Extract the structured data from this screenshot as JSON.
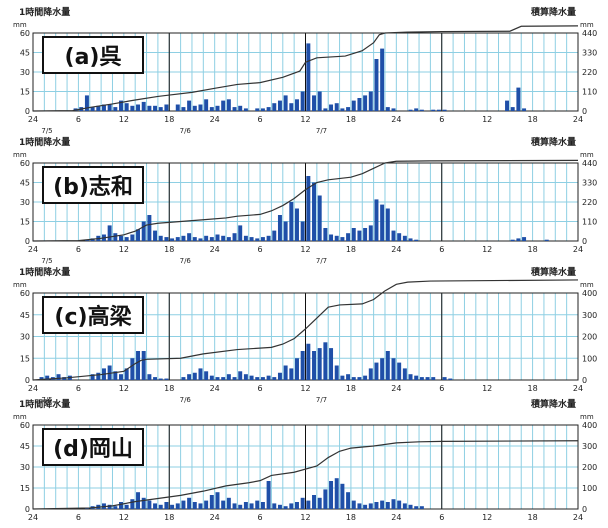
{
  "text": {
    "hourly_label": "1時間降水量",
    "cumulative_label": "積算降水量",
    "unit": "mm"
  },
  "colors": {
    "grid": "#8ecfe3",
    "bar": "#1f4fa8",
    "line": "#333333",
    "frame": "#222222",
    "day_line": "#111111"
  },
  "x_ticks": [
    "24",
    "6",
    "12",
    "18",
    "24",
    "6",
    "12",
    "18",
    "24",
    "6",
    "12",
    "18",
    "24"
  ],
  "date_labels": [
    "7/5",
    "7/6",
    "7/7"
  ],
  "chart_data": [
    {
      "type": "bar",
      "title": "(a)呉",
      "hourly_ylim": [
        0,
        60
      ],
      "hourly_ticks": [
        0,
        15,
        30,
        45,
        60
      ],
      "cum_ylim": [
        0,
        440
      ],
      "cum_ticks": [
        0,
        110,
        220,
        330,
        440
      ],
      "bars": [
        [
          7,
          2
        ],
        [
          8,
          3
        ],
        [
          9,
          12
        ],
        [
          10,
          3
        ],
        [
          11,
          4
        ],
        [
          12,
          5
        ],
        [
          13,
          5
        ],
        [
          14,
          3
        ],
        [
          15,
          8
        ],
        [
          16,
          6
        ],
        [
          17,
          4
        ],
        [
          18,
          5
        ],
        [
          19,
          7
        ],
        [
          20,
          4
        ],
        [
          21,
          4
        ],
        [
          22,
          3
        ],
        [
          23,
          5
        ],
        [
          25,
          5
        ],
        [
          26,
          3
        ],
        [
          27,
          8
        ],
        [
          28,
          4
        ],
        [
          29,
          5
        ],
        [
          30,
          9
        ],
        [
          31,
          3
        ],
        [
          32,
          4
        ],
        [
          33,
          8
        ],
        [
          34,
          9
        ],
        [
          35,
          3
        ],
        [
          36,
          4
        ],
        [
          37,
          2
        ],
        [
          39,
          2
        ],
        [
          40,
          2
        ],
        [
          41,
          3
        ],
        [
          42,
          6
        ],
        [
          43,
          8
        ],
        [
          44,
          12
        ],
        [
          45,
          6
        ],
        [
          46,
          9
        ],
        [
          47,
          15
        ],
        [
          48,
          52
        ],
        [
          49,
          12
        ],
        [
          50,
          15
        ],
        [
          51,
          2
        ],
        [
          52,
          5
        ],
        [
          53,
          6
        ],
        [
          54,
          2
        ],
        [
          55,
          3
        ],
        [
          56,
          8
        ],
        [
          57,
          10
        ],
        [
          58,
          12
        ],
        [
          59,
          15
        ],
        [
          60,
          40
        ],
        [
          61,
          48
        ],
        [
          62,
          3
        ],
        [
          63,
          2
        ],
        [
          66,
          1
        ],
        [
          67,
          2
        ],
        [
          68,
          1
        ],
        [
          70,
          1
        ],
        [
          71,
          1
        ],
        [
          72,
          1
        ],
        [
          83,
          8
        ],
        [
          84,
          3
        ],
        [
          85,
          18
        ],
        [
          86,
          2
        ]
      ],
      "cumulative": [
        [
          0,
          0
        ],
        [
          7,
          2
        ],
        [
          10,
          20
        ],
        [
          14,
          40
        ],
        [
          18,
          62
        ],
        [
          22,
          82
        ],
        [
          24,
          90
        ],
        [
          28,
          105
        ],
        [
          32,
          128
        ],
        [
          36,
          150
        ],
        [
          40,
          160
        ],
        [
          44,
          190
        ],
        [
          47,
          225
        ],
        [
          48,
          275
        ],
        [
          50,
          300
        ],
        [
          55,
          310
        ],
        [
          58,
          340
        ],
        [
          60,
          385
        ],
        [
          61,
          430
        ],
        [
          62,
          440
        ],
        [
          66,
          445
        ],
        [
          72,
          448
        ],
        [
          84,
          450
        ],
        [
          86,
          478
        ],
        [
          96,
          480
        ]
      ]
    },
    {
      "type": "bar",
      "title": "(b)志和",
      "hourly_ylim": [
        0,
        60
      ],
      "hourly_ticks": [
        0,
        15,
        30,
        45,
        60
      ],
      "cum_ylim": [
        0,
        440
      ],
      "cum_ticks": [
        0,
        110,
        220,
        330,
        440
      ],
      "bars": [
        [
          9,
          1
        ],
        [
          10,
          2
        ],
        [
          11,
          4
        ],
        [
          12,
          5
        ],
        [
          13,
          12
        ],
        [
          14,
          6
        ],
        [
          15,
          4
        ],
        [
          16,
          3
        ],
        [
          17,
          5
        ],
        [
          18,
          9
        ],
        [
          19,
          15
        ],
        [
          20,
          20
        ],
        [
          21,
          8
        ],
        [
          22,
          4
        ],
        [
          23,
          3
        ],
        [
          24,
          2
        ],
        [
          25,
          3
        ],
        [
          26,
          4
        ],
        [
          27,
          6
        ],
        [
          28,
          3
        ],
        [
          29,
          2
        ],
        [
          30,
          4
        ],
        [
          31,
          3
        ],
        [
          32,
          5
        ],
        [
          33,
          4
        ],
        [
          34,
          3
        ],
        [
          35,
          6
        ],
        [
          36,
          12
        ],
        [
          37,
          4
        ],
        [
          38,
          3
        ],
        [
          39,
          2
        ],
        [
          40,
          3
        ],
        [
          41,
          4
        ],
        [
          42,
          8
        ],
        [
          43,
          20
        ],
        [
          44,
          15
        ],
        [
          45,
          30
        ],
        [
          46,
          25
        ],
        [
          47,
          15
        ],
        [
          48,
          50
        ],
        [
          49,
          45
        ],
        [
          50,
          35
        ],
        [
          51,
          10
        ],
        [
          52,
          5
        ],
        [
          53,
          4
        ],
        [
          54,
          3
        ],
        [
          55,
          6
        ],
        [
          56,
          10
        ],
        [
          57,
          8
        ],
        [
          58,
          10
        ],
        [
          59,
          12
        ],
        [
          60,
          32
        ],
        [
          61,
          28
        ],
        [
          62,
          25
        ],
        [
          63,
          8
        ],
        [
          64,
          6
        ],
        [
          65,
          4
        ],
        [
          66,
          2
        ],
        [
          67,
          1
        ],
        [
          84,
          1
        ],
        [
          85,
          2
        ],
        [
          86,
          3
        ],
        [
          90,
          1
        ]
      ],
      "cumulative": [
        [
          0,
          0
        ],
        [
          8,
          2
        ],
        [
          12,
          15
        ],
        [
          16,
          35
        ],
        [
          18,
          55
        ],
        [
          20,
          90
        ],
        [
          22,
          100
        ],
        [
          26,
          110
        ],
        [
          30,
          120
        ],
        [
          34,
          130
        ],
        [
          36,
          140
        ],
        [
          40,
          150
        ],
        [
          42,
          170
        ],
        [
          44,
          200
        ],
        [
          46,
          240
        ],
        [
          48,
          290
        ],
        [
          50,
          330
        ],
        [
          52,
          345
        ],
        [
          56,
          360
        ],
        [
          58,
          380
        ],
        [
          60,
          410
        ],
        [
          62,
          440
        ],
        [
          64,
          450
        ],
        [
          70,
          452
        ],
        [
          96,
          455
        ]
      ]
    },
    {
      "type": "bar",
      "title": "(c)高梁",
      "hourly_ylim": [
        0,
        60
      ],
      "hourly_ticks": [
        0,
        15,
        30,
        45,
        60
      ],
      "cum_ylim": [
        0,
        400
      ],
      "cum_ticks": [
        0,
        100,
        200,
        300,
        400
      ],
      "bars": [
        [
          1,
          2
        ],
        [
          2,
          3
        ],
        [
          3,
          2
        ],
        [
          4,
          4
        ],
        [
          5,
          2
        ],
        [
          6,
          3
        ],
        [
          10,
          4
        ],
        [
          11,
          5
        ],
        [
          12,
          8
        ],
        [
          13,
          10
        ],
        [
          14,
          6
        ],
        [
          15,
          4
        ],
        [
          16,
          8
        ],
        [
          17,
          15
        ],
        [
          18,
          20
        ],
        [
          19,
          20
        ],
        [
          20,
          4
        ],
        [
          21,
          2
        ],
        [
          22,
          1
        ],
        [
          23,
          1
        ],
        [
          26,
          2
        ],
        [
          27,
          4
        ],
        [
          28,
          5
        ],
        [
          29,
          8
        ],
        [
          30,
          6
        ],
        [
          31,
          3
        ],
        [
          32,
          2
        ],
        [
          33,
          2
        ],
        [
          34,
          4
        ],
        [
          35,
          2
        ],
        [
          36,
          6
        ],
        [
          37,
          4
        ],
        [
          38,
          3
        ],
        [
          39,
          2
        ],
        [
          40,
          2
        ],
        [
          41,
          3
        ],
        [
          42,
          2
        ],
        [
          43,
          5
        ],
        [
          44,
          10
        ],
        [
          45,
          8
        ],
        [
          46,
          15
        ],
        [
          47,
          20
        ],
        [
          48,
          25
        ],
        [
          49,
          20
        ],
        [
          50,
          22
        ],
        [
          51,
          26
        ],
        [
          52,
          22
        ],
        [
          53,
          10
        ],
        [
          54,
          3
        ],
        [
          55,
          4
        ],
        [
          56,
          2
        ],
        [
          57,
          2
        ],
        [
          58,
          3
        ],
        [
          59,
          8
        ],
        [
          60,
          12
        ],
        [
          61,
          15
        ],
        [
          62,
          20
        ],
        [
          63,
          15
        ],
        [
          64,
          12
        ],
        [
          65,
          8
        ],
        [
          66,
          4
        ],
        [
          67,
          3
        ],
        [
          68,
          2
        ],
        [
          69,
          2
        ],
        [
          70,
          2
        ],
        [
          72,
          2
        ],
        [
          73,
          1
        ]
      ],
      "cumulative": [
        [
          0,
          0
        ],
        [
          6,
          10
        ],
        [
          12,
          25
        ],
        [
          16,
          40
        ],
        [
          18,
          75
        ],
        [
          19,
          90
        ],
        [
          20,
          95
        ],
        [
          26,
          100
        ],
        [
          30,
          120
        ],
        [
          36,
          140
        ],
        [
          42,
          150
        ],
        [
          44,
          165
        ],
        [
          46,
          190
        ],
        [
          48,
          235
        ],
        [
          50,
          285
        ],
        [
          52,
          335
        ],
        [
          54,
          345
        ],
        [
          58,
          350
        ],
        [
          60,
          370
        ],
        [
          62,
          410
        ],
        [
          64,
          440
        ],
        [
          66,
          450
        ],
        [
          70,
          455
        ],
        [
          96,
          460
        ]
      ]
    },
    {
      "type": "bar",
      "title": "(d)岡山",
      "hourly_ylim": [
        0,
        60
      ],
      "hourly_ticks": [
        0,
        15,
        30,
        45,
        60
      ],
      "cum_ylim": [
        0,
        400
      ],
      "cum_ticks": [
        0,
        100,
        200,
        300,
        400
      ],
      "bars": [
        [
          9,
          1
        ],
        [
          10,
          2
        ],
        [
          11,
          3
        ],
        [
          12,
          4
        ],
        [
          13,
          3
        ],
        [
          14,
          2
        ],
        [
          15,
          5
        ],
        [
          16,
          3
        ],
        [
          17,
          7
        ],
        [
          18,
          12
        ],
        [
          19,
          8
        ],
        [
          20,
          6
        ],
        [
          21,
          4
        ],
        [
          22,
          3
        ],
        [
          23,
          5
        ],
        [
          24,
          3
        ],
        [
          25,
          4
        ],
        [
          26,
          6
        ],
        [
          27,
          8
        ],
        [
          28,
          5
        ],
        [
          29,
          4
        ],
        [
          30,
          6
        ],
        [
          31,
          10
        ],
        [
          32,
          12
        ],
        [
          33,
          6
        ],
        [
          34,
          8
        ],
        [
          35,
          4
        ],
        [
          36,
          3
        ],
        [
          37,
          5
        ],
        [
          38,
          4
        ],
        [
          39,
          6
        ],
        [
          40,
          5
        ],
        [
          41,
          20
        ],
        [
          42,
          4
        ],
        [
          43,
          3
        ],
        [
          44,
          2
        ],
        [
          45,
          4
        ],
        [
          46,
          5
        ],
        [
          47,
          8
        ],
        [
          48,
          6
        ],
        [
          49,
          10
        ],
        [
          50,
          8
        ],
        [
          51,
          14
        ],
        [
          52,
          20
        ],
        [
          53,
          22
        ],
        [
          54,
          18
        ],
        [
          55,
          12
        ],
        [
          56,
          6
        ],
        [
          57,
          4
        ],
        [
          58,
          3
        ],
        [
          59,
          4
        ],
        [
          60,
          5
        ],
        [
          61,
          6
        ],
        [
          62,
          5
        ],
        [
          63,
          7
        ],
        [
          64,
          6
        ],
        [
          65,
          4
        ],
        [
          66,
          3
        ],
        [
          67,
          2
        ],
        [
          68,
          2
        ]
      ],
      "cumulative": [
        [
          0,
          0
        ],
        [
          10,
          5
        ],
        [
          14,
          15
        ],
        [
          18,
          35
        ],
        [
          22,
          50
        ],
        [
          26,
          65
        ],
        [
          30,
          85
        ],
        [
          34,
          110
        ],
        [
          38,
          125
        ],
        [
          40,
          135
        ],
        [
          42,
          160
        ],
        [
          46,
          175
        ],
        [
          50,
          205
        ],
        [
          52,
          245
        ],
        [
          54,
          275
        ],
        [
          56,
          290
        ],
        [
          60,
          300
        ],
        [
          64,
          315
        ],
        [
          68,
          320
        ],
        [
          72,
          322
        ],
        [
          96,
          325
        ]
      ]
    }
  ]
}
